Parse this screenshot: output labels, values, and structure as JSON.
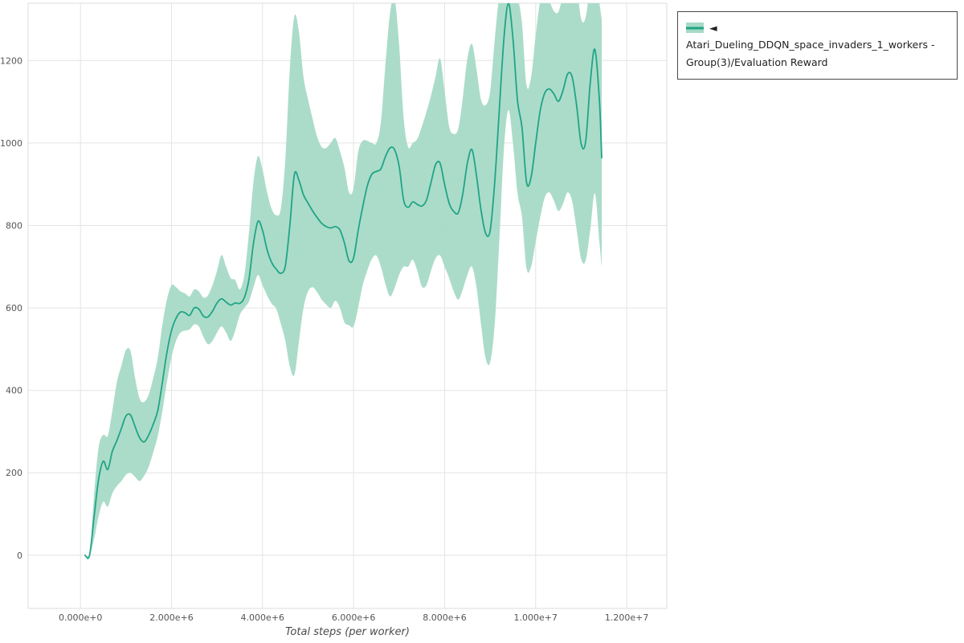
{
  "colors": {
    "line": "#20a486",
    "band": "#a6dac6",
    "grid": "#e4e4e4",
    "plot_border": "#dcdcdc",
    "tick_text": "#555555",
    "axis_title": "#4a4a4a",
    "legend_border": "#4a4a4a"
  },
  "legend": {
    "label": "◄ Atari_Dueling_DDQN_space_invaders_1_workers - Group(3)/Evaluation Reward"
  },
  "chart_data": {
    "type": "line",
    "title": "",
    "xlabel": "Total steps (per worker)",
    "ylabel": "",
    "grid": true,
    "legend_position": "top-right",
    "x_unit": 1000000,
    "xlim": [
      -1150000,
      12880000
    ],
    "ylim": [
      -129,
      1339
    ],
    "x_ticks": {
      "values": [
        0,
        2000000,
        4000000,
        6000000,
        8000000,
        10000000,
        12000000
      ],
      "labels": [
        "0.000e+0",
        "2.000e+6",
        "4.000e+6",
        "6.000e+6",
        "8.000e+6",
        "1.000e+7",
        "1.200e+7"
      ]
    },
    "y_ticks": {
      "values": [
        0,
        200,
        400,
        600,
        800,
        1000,
        1200
      ],
      "labels": [
        "0",
        "200",
        "400",
        "600",
        "800",
        "1000",
        "1200"
      ]
    },
    "series": [
      {
        "name": "◄ Atari_Dueling_DDQN_space_invaders_1_workers - Group(3)/Evaluation Reward",
        "color": "#20a486",
        "band_color": "#a6dac6",
        "points_format": [
          "x_millions",
          "lower",
          "mean",
          "upper"
        ],
        "points": [
          [
            0.1,
            0,
            0,
            0
          ],
          [
            0.2,
            0,
            0,
            0
          ],
          [
            0.3,
            40,
            95,
            150
          ],
          [
            0.4,
            95,
            185,
            262
          ],
          [
            0.5,
            130,
            228,
            292
          ],
          [
            0.6,
            118,
            208,
            290
          ],
          [
            0.7,
            150,
            252,
            350
          ],
          [
            0.8,
            168,
            278,
            420
          ],
          [
            0.9,
            180,
            308,
            460
          ],
          [
            1.0,
            195,
            338,
            498
          ],
          [
            1.1,
            200,
            340,
            495
          ],
          [
            1.2,
            190,
            312,
            430
          ],
          [
            1.3,
            180,
            285,
            380
          ],
          [
            1.4,
            193,
            275,
            372
          ],
          [
            1.5,
            215,
            292,
            390
          ],
          [
            1.6,
            250,
            318,
            430
          ],
          [
            1.7,
            290,
            352,
            480
          ],
          [
            1.8,
            350,
            420,
            560
          ],
          [
            1.9,
            420,
            492,
            620
          ],
          [
            2.0,
            480,
            545,
            655
          ],
          [
            2.1,
            520,
            575,
            650
          ],
          [
            2.2,
            540,
            590,
            640
          ],
          [
            2.3,
            545,
            588,
            635
          ],
          [
            2.4,
            548,
            582,
            628
          ],
          [
            2.5,
            560,
            600,
            645
          ],
          [
            2.6,
            555,
            597,
            640
          ],
          [
            2.7,
            530,
            580,
            625
          ],
          [
            2.8,
            512,
            578,
            630
          ],
          [
            2.9,
            520,
            592,
            655
          ],
          [
            3.0,
            540,
            612,
            690
          ],
          [
            3.1,
            555,
            622,
            728
          ],
          [
            3.2,
            540,
            614,
            700
          ],
          [
            3.3,
            520,
            607,
            672
          ],
          [
            3.4,
            545,
            612,
            668
          ],
          [
            3.5,
            583,
            611,
            645
          ],
          [
            3.6,
            600,
            625,
            680
          ],
          [
            3.7,
            615,
            668,
            780
          ],
          [
            3.8,
            650,
            756,
            905
          ],
          [
            3.9,
            680,
            810,
            968
          ],
          [
            4.0,
            655,
            788,
            935
          ],
          [
            4.1,
            630,
            741,
            880
          ],
          [
            4.2,
            610,
            710,
            840
          ],
          [
            4.3,
            598,
            694,
            825
          ],
          [
            4.4,
            562,
            684,
            840
          ],
          [
            4.5,
            520,
            702,
            960
          ],
          [
            4.6,
            458,
            800,
            1180
          ],
          [
            4.7,
            438,
            924,
            1308
          ],
          [
            4.8,
            520,
            909,
            1268
          ],
          [
            4.9,
            600,
            874,
            1160
          ],
          [
            5.0,
            640,
            854,
            1105
          ],
          [
            5.1,
            650,
            835,
            1058
          ],
          [
            5.2,
            638,
            819,
            1015
          ],
          [
            5.3,
            620,
            805,
            990
          ],
          [
            5.4,
            608,
            797,
            988
          ],
          [
            5.5,
            600,
            794,
            1000
          ],
          [
            5.6,
            617,
            797,
            1012
          ],
          [
            5.7,
            600,
            789,
            980
          ],
          [
            5.8,
            565,
            757,
            940
          ],
          [
            5.9,
            558,
            714,
            880
          ],
          [
            6.0,
            555,
            721,
            890
          ],
          [
            6.1,
            600,
            787,
            978
          ],
          [
            6.2,
            655,
            845,
            1005
          ],
          [
            6.3,
            690,
            895,
            1005
          ],
          [
            6.4,
            718,
            924,
            1000
          ],
          [
            6.5,
            727,
            931,
            1000
          ],
          [
            6.6,
            700,
            937,
            1050
          ],
          [
            6.7,
            658,
            967,
            1190
          ],
          [
            6.8,
            628,
            988,
            1315
          ],
          [
            6.9,
            648,
            984,
            1350
          ],
          [
            7.0,
            680,
            944,
            1240
          ],
          [
            7.1,
            700,
            861,
            1060
          ],
          [
            7.2,
            700,
            844,
            990
          ],
          [
            7.3,
            717,
            857,
            1000
          ],
          [
            7.4,
            690,
            851,
            1010
          ],
          [
            7.5,
            652,
            847,
            1040
          ],
          [
            7.6,
            655,
            861,
            1075
          ],
          [
            7.7,
            690,
            904,
            1115
          ],
          [
            7.8,
            720,
            947,
            1160
          ],
          [
            7.9,
            727,
            951,
            1205
          ],
          [
            8.0,
            700,
            899,
            1125
          ],
          [
            8.1,
            672,
            854,
            1040
          ],
          [
            8.2,
            640,
            834,
            1022
          ],
          [
            8.3,
            620,
            831,
            1035
          ],
          [
            8.4,
            645,
            877,
            1110
          ],
          [
            8.5,
            680,
            951,
            1205
          ],
          [
            8.6,
            700,
            984,
            1240
          ],
          [
            8.7,
            650,
            921,
            1180
          ],
          [
            8.8,
            560,
            837,
            1105
          ],
          [
            8.9,
            478,
            781,
            1092
          ],
          [
            9.0,
            468,
            787,
            1125
          ],
          [
            9.1,
            560,
            904,
            1250
          ],
          [
            9.2,
            760,
            1079,
            1360
          ],
          [
            9.3,
            980,
            1249,
            1420
          ],
          [
            9.4,
            1080,
            1339,
            1450
          ],
          [
            9.5,
            1000,
            1254,
            1430
          ],
          [
            9.6,
            880,
            1104,
            1360
          ],
          [
            9.7,
            820,
            1037,
            1290
          ],
          [
            9.8,
            695,
            904,
            1140
          ],
          [
            9.9,
            700,
            917,
            1160
          ],
          [
            10.0,
            760,
            999,
            1260
          ],
          [
            10.1,
            820,
            1079,
            1345
          ],
          [
            10.2,
            868,
            1121,
            1370
          ],
          [
            10.3,
            880,
            1131,
            1345
          ],
          [
            10.4,
            860,
            1119,
            1320
          ],
          [
            10.5,
            835,
            1101,
            1318
          ],
          [
            10.6,
            852,
            1127,
            1360
          ],
          [
            10.7,
            880,
            1167,
            1395
          ],
          [
            10.8,
            860,
            1161,
            1400
          ],
          [
            10.9,
            790,
            1091,
            1380
          ],
          [
            11.0,
            718,
            997,
            1300
          ],
          [
            11.1,
            715,
            1004,
            1305
          ],
          [
            11.2,
            790,
            1147,
            1385
          ],
          [
            11.3,
            878,
            1227,
            1420
          ],
          [
            11.4,
            760,
            1104,
            1340
          ],
          [
            11.45,
            700,
            964,
            1300
          ]
        ]
      }
    ]
  }
}
